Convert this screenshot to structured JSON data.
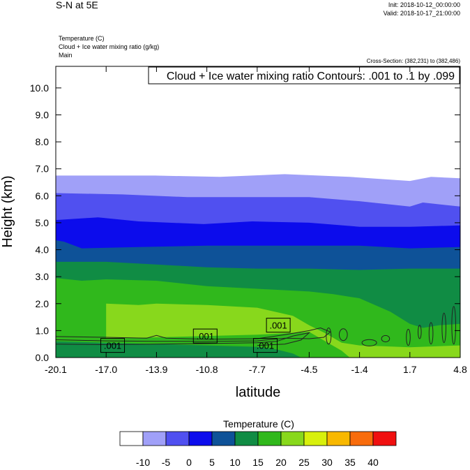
{
  "header": {
    "title": "S-N at 5E",
    "init": "Init: 2018-10-12_00:00:00",
    "valid": "Valid: 2018-10-17_21:00:00",
    "field1": "Temperature   (C)",
    "field2": "Cloud + Ice water mixing ratio   (g/kg)",
    "field3": "Main",
    "cross_section": "Cross-Section: (382,231) to (382,486)"
  },
  "chart_data": {
    "type": "contour",
    "contour_info": "Cloud + Ice water mixing ratio Contours: .001 to .1 by .099",
    "xlabel": "latitude",
    "ylabel": "Height (km)",
    "xlim": [
      -20.1,
      4.8
    ],
    "ylim": [
      0,
      10.8
    ],
    "x_ticks": [
      "-20.1",
      "-17.0",
      "-13.9",
      "-10.8",
      "-7.7",
      "-4.5",
      "-1.4",
      "1.7",
      "4.8"
    ],
    "x_tick_values": [
      -20.1,
      -17.0,
      -13.9,
      -10.8,
      -7.7,
      -4.5,
      -1.4,
      1.7,
      4.8
    ],
    "y_ticks": [
      "0.0",
      "1.0",
      "2.0",
      "3.0",
      "4.0",
      "5.0",
      "6.0",
      "7.0",
      "8.0",
      "9.0",
      "10.0"
    ],
    "y_tick_values": [
      0,
      1,
      2,
      3,
      4,
      5,
      6,
      7,
      8,
      9,
      10
    ],
    "temperature_bands": [
      {
        "range": "-10 to -5",
        "color": "#a0a0f8",
        "top": [
          [
            -20.1,
            6.75
          ],
          [
            -14.0,
            6.75
          ],
          [
            -10.0,
            6.7
          ],
          [
            -6.0,
            6.8
          ],
          [
            -2.0,
            6.7
          ],
          [
            1.7,
            6.55
          ],
          [
            3.0,
            6.7
          ],
          [
            4.8,
            6.65
          ]
        ]
      },
      {
        "range": "-5 to 0",
        "color": "#5050f0",
        "top": [
          [
            -20.1,
            6.1
          ],
          [
            -16.0,
            6.05
          ],
          [
            -12.0,
            5.95
          ],
          [
            -8.0,
            5.95
          ],
          [
            -4.5,
            5.95
          ],
          [
            -1.4,
            5.8
          ],
          [
            1.7,
            5.6
          ],
          [
            2.5,
            5.75
          ],
          [
            4.8,
            5.6
          ]
        ]
      },
      {
        "range": "0 to 5",
        "color": "#0c0cec",
        "top": [
          [
            -20.1,
            5.1
          ],
          [
            -17.5,
            5.2
          ],
          [
            -15.0,
            5.05
          ],
          [
            -11.0,
            4.95
          ],
          [
            -8.0,
            5.05
          ],
          [
            -4.5,
            5.0
          ],
          [
            -1.4,
            4.85
          ],
          [
            1.7,
            4.85
          ],
          [
            4.8,
            4.9
          ]
        ]
      },
      {
        "range": "5 to 10",
        "color": "#0e5298",
        "top": [
          [
            -20.1,
            4.35
          ],
          [
            -19.6,
            4.3
          ],
          [
            -18.5,
            4.05
          ],
          [
            -15.0,
            4.1
          ],
          [
            -10.8,
            4.15
          ],
          [
            -7.7,
            4.15
          ],
          [
            -4.5,
            4.15
          ],
          [
            -1.4,
            4.15
          ],
          [
            1.7,
            4.05
          ],
          [
            4.8,
            4.1
          ]
        ]
      },
      {
        "range": "10 to 15",
        "color": "#108c44",
        "top": [
          [
            -20.1,
            3.55
          ],
          [
            -17.0,
            3.55
          ],
          [
            -13.9,
            3.45
          ],
          [
            -10.8,
            3.35
          ],
          [
            -7.7,
            3.3
          ],
          [
            -4.5,
            3.3
          ],
          [
            -1.4,
            3.25
          ],
          [
            1.7,
            3.3
          ],
          [
            4.8,
            3.3
          ]
        ]
      },
      {
        "range": "15 to 20",
        "color": "#30b81c",
        "top": [
          [
            -20.1,
            2.95
          ],
          [
            -18.5,
            2.85
          ],
          [
            -17.0,
            2.9
          ],
          [
            -13.9,
            2.85
          ],
          [
            -10.8,
            2.65
          ],
          [
            -7.7,
            2.55
          ],
          [
            -4.5,
            2.45
          ],
          [
            -3.0,
            2.35
          ],
          [
            -1.4,
            2.2
          ],
          [
            0.5,
            1.7
          ],
          [
            1.7,
            1.25
          ],
          [
            2.5,
            1.1
          ],
          [
            3.5,
            1.2
          ],
          [
            4.8,
            1.25
          ]
        ]
      },
      {
        "range": "20 to 25",
        "color": "#88d81c",
        "top": [
          [
            -17.0,
            2.0
          ],
          [
            -15.0,
            1.95
          ],
          [
            -13.9,
            2.0
          ],
          [
            -10.8,
            1.95
          ],
          [
            -7.7,
            1.85
          ],
          [
            -5.5,
            1.55
          ],
          [
            -4.5,
            1.2
          ],
          [
            -3.5,
            0.9
          ],
          [
            -2.5,
            0.55
          ],
          [
            -1.4,
            0.45
          ],
          [
            0.0,
            0.42
          ],
          [
            1.7,
            0.38
          ],
          [
            4.8,
            0.45
          ]
        ]
      },
      {
        "range": "15 to 20",
        "color": "#30b81c",
        "top": [
          [
            -20.1,
            1.0
          ],
          [
            -19.0,
            0.9
          ],
          [
            -18.0,
            0.75
          ],
          [
            -17.0,
            0.7
          ],
          [
            -13.9,
            0.75
          ],
          [
            -10.8,
            0.8
          ],
          [
            -7.7,
            0.85
          ],
          [
            -6.0,
            0.9
          ],
          [
            -4.5,
            0.95
          ],
          [
            -3.5,
            0.6
          ],
          [
            -2.5,
            0.25
          ],
          [
            -2.0,
            0.0
          ]
        ]
      },
      {
        "range": "10 to 15",
        "color": "#108c44",
        "top": [
          [
            -20.1,
            0.6
          ],
          [
            -17.0,
            0.55
          ],
          [
            -13.9,
            0.5
          ],
          [
            -10.8,
            0.45
          ],
          [
            -7.7,
            0.4
          ],
          [
            -6.5,
            0.3
          ],
          [
            -5.5,
            0.15
          ],
          [
            -5.0,
            0.0
          ]
        ]
      }
    ],
    "contour_labels": [
      {
        "text": ".001",
        "x": -16.6,
        "y": 0.45
      },
      {
        "text": ".001",
        "x": -10.9,
        "y": 0.8
      },
      {
        "text": ".001",
        "x": -6.4,
        "y": 1.2
      },
      {
        "text": ".001",
        "x": -7.2,
        "y": 0.45
      }
    ],
    "legend": {
      "title": "Temperature  (C)",
      "labels": [
        "-10",
        "-5",
        "0",
        "5",
        "10",
        "15",
        "20",
        "25",
        "30",
        "35",
        "40"
      ],
      "colors": [
        "#ffffff",
        "#a0a0f8",
        "#5050f0",
        "#0c0cec",
        "#0e5298",
        "#108c44",
        "#30b81c",
        "#88d81c",
        "#d8f00c",
        "#f8b800",
        "#f86c0c",
        "#f01010"
      ]
    }
  }
}
